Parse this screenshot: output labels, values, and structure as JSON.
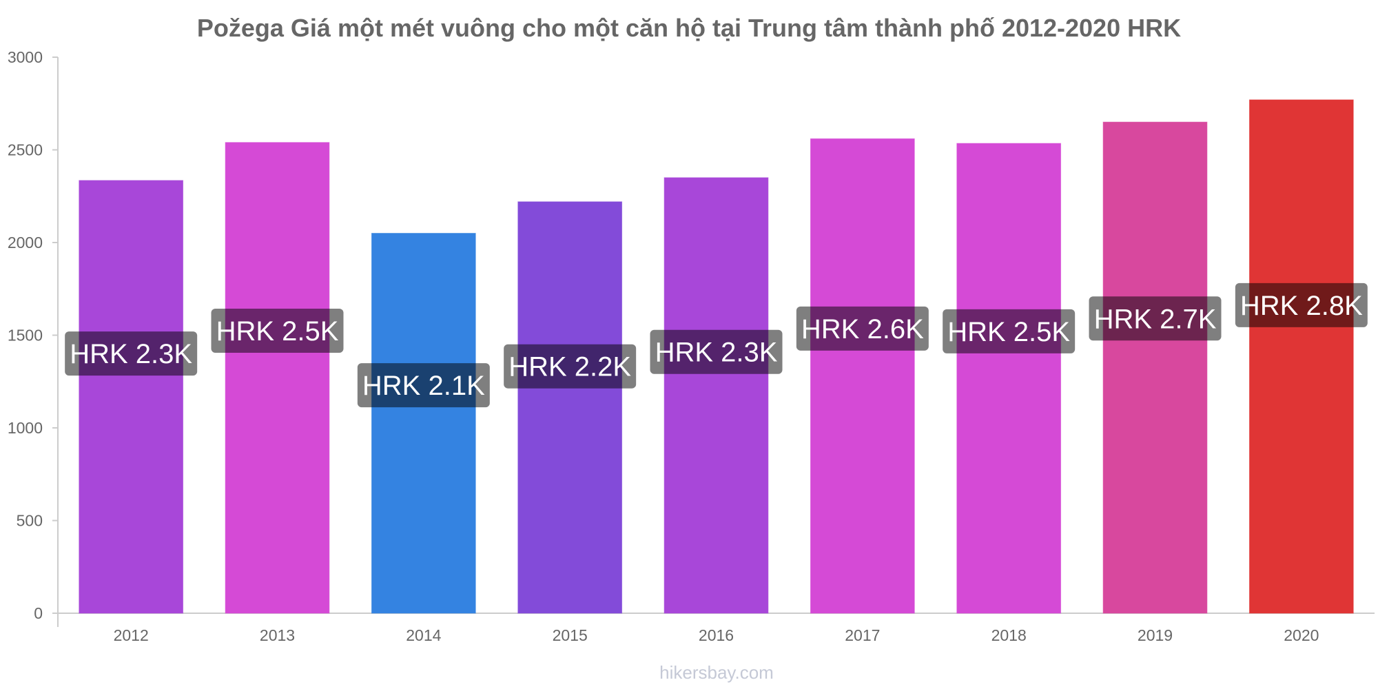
{
  "chart_data": {
    "type": "bar",
    "title": "Požega Giá một mét vuông cho một căn hộ tại Trung tâm thành phố 2012-2020 HRK",
    "categories": [
      "2012",
      "2013",
      "2014",
      "2015",
      "2016",
      "2017",
      "2018",
      "2019",
      "2020"
    ],
    "values": [
      2335,
      2540,
      2050,
      2220,
      2350,
      2560,
      2535,
      2650,
      2770
    ],
    "value_labels": [
      "HRK 2.3K",
      "HRK 2.5K",
      "HRK 2.1K",
      "HRK 2.2K",
      "HRK 2.3K",
      "HRK 2.6K",
      "HRK 2.5K",
      "HRK 2.7K",
      "HRK 2.8K"
    ],
    "colors": [
      "#a847d9",
      "#d54ad6",
      "#3483e1",
      "#834bd9",
      "#a847d9",
      "#d54ad6",
      "#d54ad6",
      "#d8489e",
      "#e03535"
    ],
    "y_ticks": [
      "0",
      "500",
      "1000",
      "1500",
      "2000",
      "2500",
      "3000"
    ],
    "ylim": [
      0,
      3000
    ],
    "xlabel": "",
    "ylabel": "",
    "grid": false,
    "legend": "none"
  },
  "footer": "hikersbay.com"
}
